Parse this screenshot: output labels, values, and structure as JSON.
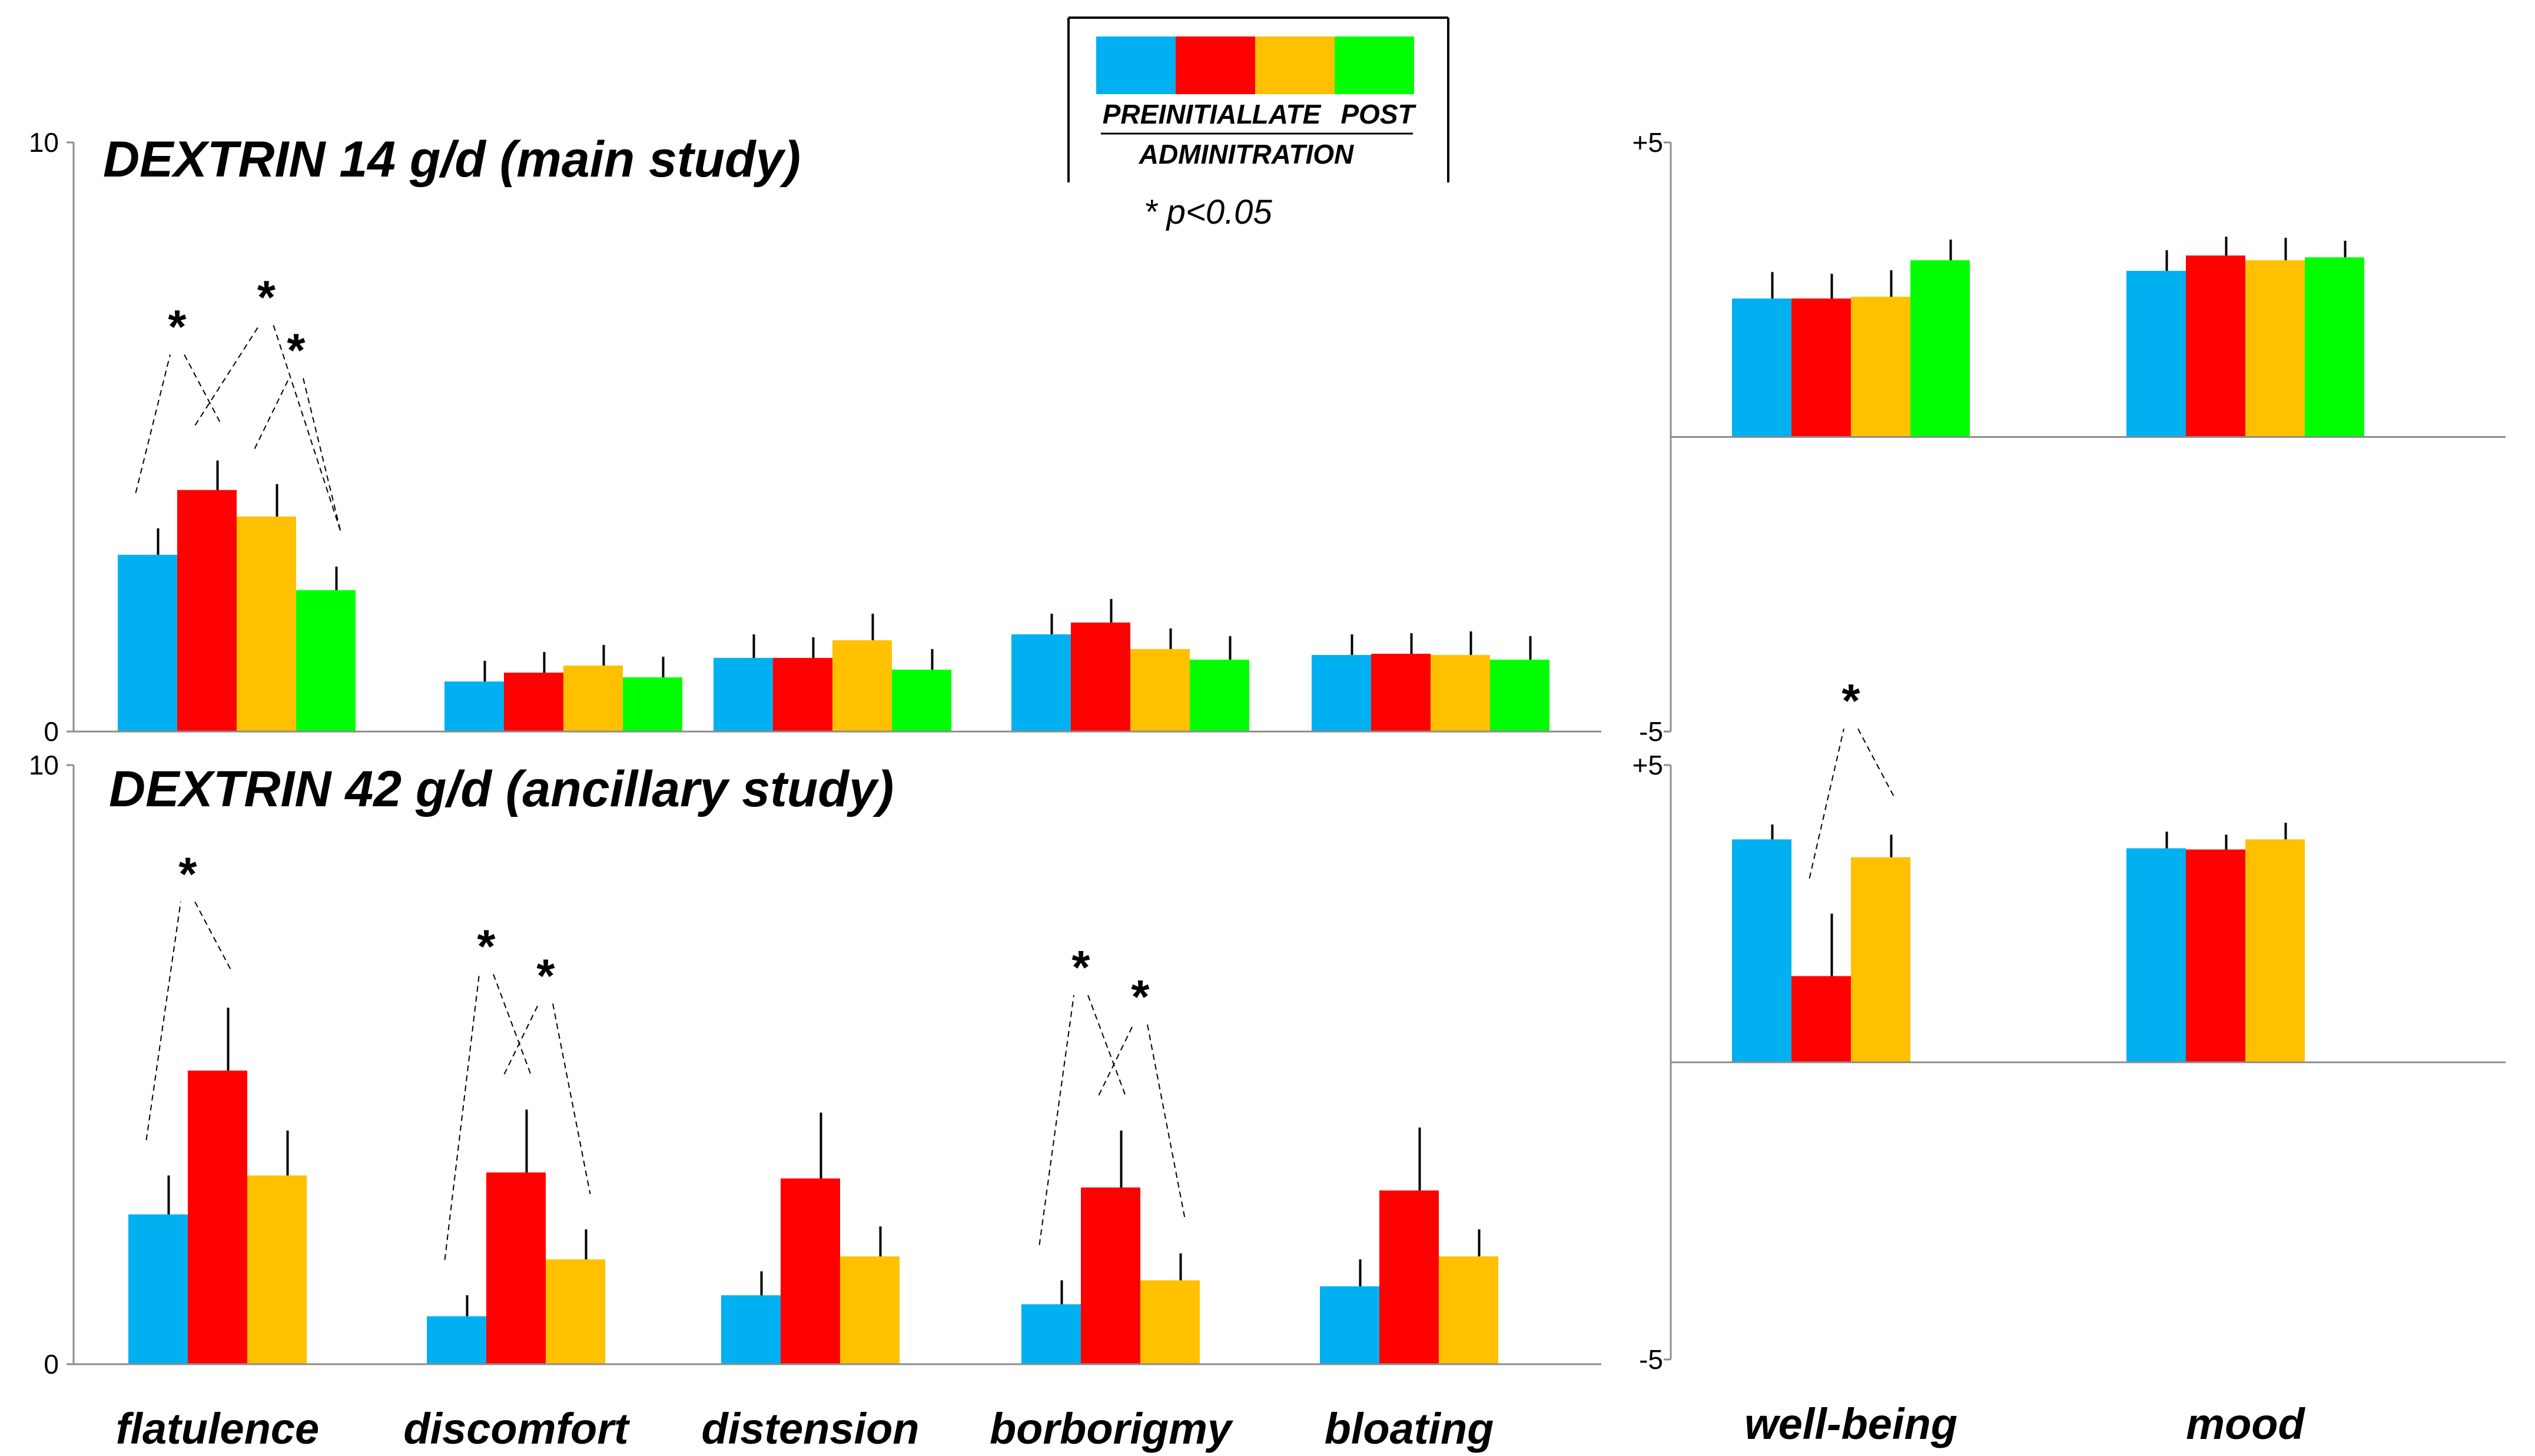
{
  "legend": {
    "colors": [
      "#00B0F0",
      "#FF0000",
      "#FFC000",
      "#00FF00"
    ],
    "labels": [
      "PRE",
      "INITIAL",
      "LATE",
      "POST"
    ],
    "caption": "ADMINITRATION",
    "sig_note": "* p<0.05"
  },
  "chart_data": [
    {
      "type": "bar",
      "title": "DEXTRIN 14 g/d (main study)",
      "categories": [
        "flatulence",
        "discomfort",
        "distension",
        "borborigmy",
        "bloating"
      ],
      "series": [
        {
          "name": "PRE",
          "values": [
            3.0,
            0.85,
            1.25,
            1.65,
            1.3
          ],
          "errors": [
            0.45,
            0.35,
            0.4,
            0.35,
            0.35
          ]
        },
        {
          "name": "INITIAL",
          "values": [
            4.1,
            1.0,
            1.25,
            1.85,
            1.32
          ],
          "errors": [
            0.5,
            0.35,
            0.35,
            0.4,
            0.35
          ]
        },
        {
          "name": "LATE",
          "values": [
            3.65,
            1.12,
            1.55,
            1.4,
            1.3
          ],
          "errors": [
            0.55,
            0.35,
            0.45,
            0.35,
            0.4
          ]
        },
        {
          "name": "POST",
          "values": [
            2.4,
            0.92,
            1.05,
            1.22,
            1.22
          ],
          "errors": [
            0.4,
            0.35,
            0.35,
            0.4,
            0.4
          ]
        }
      ],
      "ylim": [
        0,
        10
      ],
      "yticks": [
        "0",
        "10"
      ],
      "xlabel": "",
      "ylabel": "",
      "significance": [
        {
          "category": "flatulence",
          "pair": [
            "PRE",
            "INITIAL"
          ],
          "label": "*"
        },
        {
          "category": "flatulence",
          "pair": [
            "INITIAL",
            "POST"
          ],
          "label": "*"
        },
        {
          "category": "flatulence",
          "pair": [
            "LATE",
            "POST"
          ],
          "label": "*"
        }
      ]
    },
    {
      "type": "bar",
      "title": "DEXTRIN 42 g/d (ancillary study)",
      "categories": [
        "flatulence",
        "discomfort",
        "distension",
        "borborigmy",
        "bloating"
      ],
      "series": [
        {
          "name": "PRE",
          "values": [
            2.5,
            0.8,
            1.15,
            1.0,
            1.3
          ],
          "errors": [
            0.65,
            0.35,
            0.4,
            0.4,
            0.45
          ]
        },
        {
          "name": "INITIAL",
          "values": [
            4.9,
            3.2,
            3.1,
            2.95,
            2.9
          ],
          "errors": [
            1.05,
            1.05,
            1.1,
            0.95,
            1.05
          ]
        },
        {
          "name": "LATE",
          "values": [
            3.15,
            1.75,
            1.8,
            1.4,
            1.8
          ],
          "errors": [
            0.75,
            0.5,
            0.5,
            0.45,
            0.45
          ]
        }
      ],
      "ylim": [
        0,
        10
      ],
      "yticks": [
        "0",
        "10"
      ],
      "xlabel": "",
      "ylabel": "",
      "significance": [
        {
          "category": "flatulence",
          "pair": [
            "PRE",
            "INITIAL"
          ],
          "label": "*"
        },
        {
          "category": "discomfort",
          "pair": [
            "PRE",
            "INITIAL"
          ],
          "label": "*"
        },
        {
          "category": "discomfort",
          "pair": [
            "INITIAL",
            "LATE"
          ],
          "label": "*"
        },
        {
          "category": "borborigmy",
          "pair": [
            "PRE",
            "INITIAL"
          ],
          "label": "*"
        },
        {
          "category": "borborigmy",
          "pair": [
            "INITIAL",
            "LATE"
          ],
          "label": "*"
        }
      ]
    },
    {
      "type": "bar",
      "title": "",
      "categories": [
        "well-being",
        "mood"
      ],
      "series": [
        {
          "name": "PRE",
          "values": [
            2.35,
            2.82
          ],
          "errors": [
            0.45,
            0.35
          ]
        },
        {
          "name": "INITIAL",
          "values": [
            2.35,
            3.08
          ],
          "errors": [
            0.42,
            0.32
          ]
        },
        {
          "name": "LATE",
          "values": [
            2.38,
            3.0
          ],
          "errors": [
            0.45,
            0.38
          ]
        },
        {
          "name": "POST",
          "values": [
            3.0,
            3.05
          ],
          "errors": [
            0.35,
            0.28
          ]
        }
      ],
      "ylim": [
        -5,
        5
      ],
      "yticks": [
        "+5",
        "-5"
      ],
      "xlabel": "",
      "ylabel": "",
      "significance": []
    },
    {
      "type": "bar",
      "title": "",
      "categories": [
        "well-being",
        "mood"
      ],
      "series": [
        {
          "name": "PRE",
          "values": [
            3.75,
            3.6
          ],
          "errors": [
            0.25,
            0.28
          ]
        },
        {
          "name": "INITIAL",
          "values": [
            1.45,
            3.58
          ],
          "errors": [
            1.05,
            0.25
          ]
        },
        {
          "name": "LATE",
          "values": [
            3.45,
            3.75
          ],
          "errors": [
            0.38,
            0.28
          ]
        }
      ],
      "ylim": [
        -5,
        5
      ],
      "yticks": [
        "+5",
        "-5"
      ],
      "xlabel": "",
      "ylabel": "",
      "significance": [
        {
          "category": "well-being",
          "pair": [
            "INITIAL",
            "LATE"
          ],
          "label": "*"
        }
      ]
    }
  ]
}
